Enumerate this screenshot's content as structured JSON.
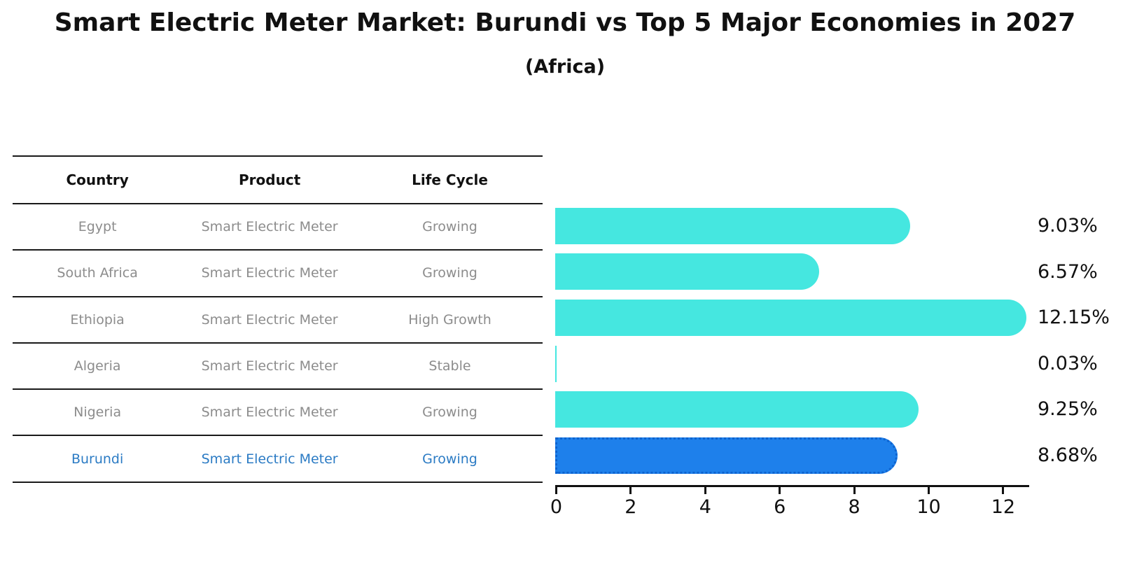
{
  "title": "Smart Electric Meter Market: Burundi vs Top 5 Major Economies in 2027",
  "subtitle": "(Africa)",
  "table": {
    "columns": [
      "Country",
      "Product",
      "Life Cycle"
    ],
    "rows": [
      {
        "country": "Egypt",
        "product": "Smart Electric Meter",
        "life_cycle": "Growing"
      },
      {
        "country": "South Africa",
        "product": "Smart Electric Meter",
        "life_cycle": "Growing"
      },
      {
        "country": "Ethiopia",
        "product": "Smart Electric Meter",
        "life_cycle": "High Growth"
      },
      {
        "country": "Algeria",
        "product": "Smart Electric Meter",
        "life_cycle": "Stable"
      },
      {
        "country": "Nigeria",
        "product": "Smart Electric Meter",
        "life_cycle": "Growing"
      },
      {
        "country": "Burundi",
        "product": "Smart Electric Meter",
        "life_cycle": "Growing"
      }
    ]
  },
  "chart_data": {
    "type": "bar",
    "orientation": "horizontal",
    "title": "Smart Electric Meter Market: Burundi vs Top 5 Major Economies in 2027",
    "subtitle": "(Africa)",
    "categories": [
      "Egypt",
      "South Africa",
      "Ethiopia",
      "Algeria",
      "Nigeria",
      "Burundi"
    ],
    "values": [
      9.03,
      6.57,
      12.15,
      0.03,
      9.25,
      8.68
    ],
    "value_labels": [
      "9.03%",
      "6.57%",
      "12.15%",
      "0.03%",
      "9.25%",
      "8.68%"
    ],
    "x_ticks": [
      "0",
      "2",
      "4",
      "6",
      "8",
      "10",
      "12"
    ],
    "xlim": [
      0,
      12.75
    ],
    "grid": false,
    "legend": false,
    "highlight_index": 5,
    "colors": {
      "default_bar": "#45E7E0",
      "highlight_bar": "#1E80EB",
      "highlight_border": "#0E63CF",
      "highlight_text": "#2B7BC4",
      "table_text": "#8C8C8C",
      "ink": "#111111"
    }
  }
}
